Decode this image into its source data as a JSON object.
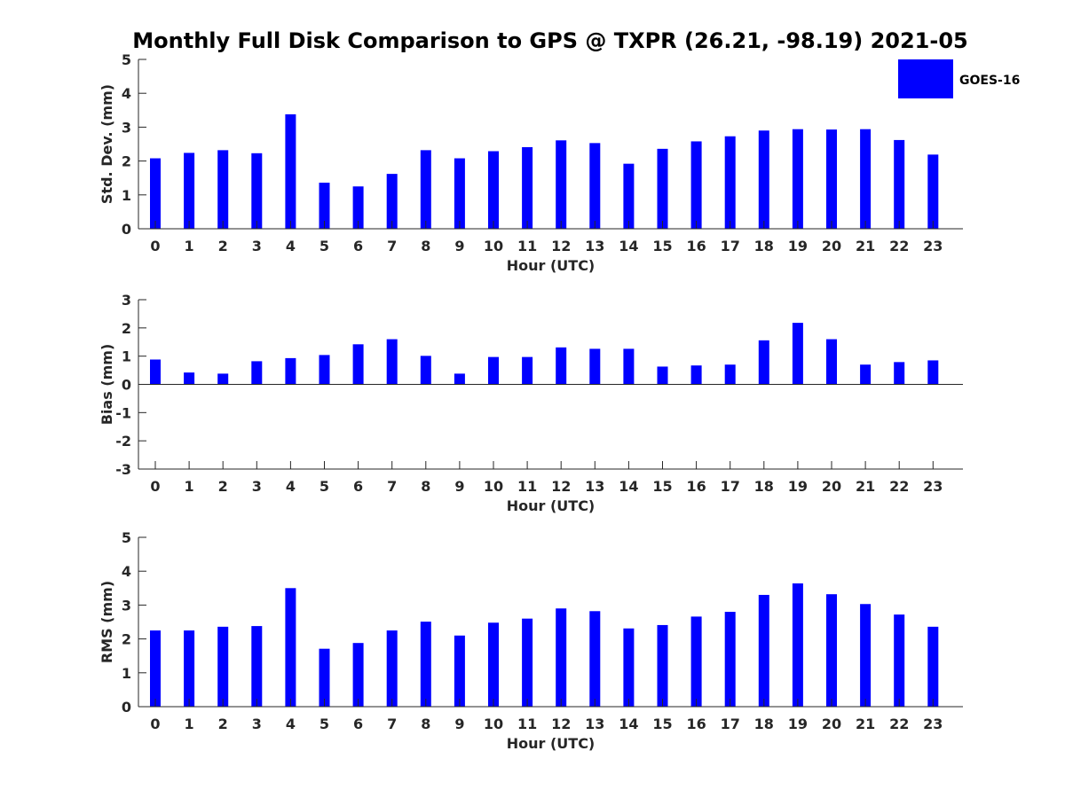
{
  "title": "Monthly Full Disk Comparison to GPS @ TXPR (26.21, -98.19) 2021-05",
  "legend": {
    "label": "GOES-16",
    "color": "#0000ff"
  },
  "chart_data": [
    {
      "type": "bar",
      "title": "Monthly Full Disk Comparison to GPS @ TXPR (26.21, -98.19) 2021-05",
      "xlabel": "Hour (UTC)",
      "ylabel": "Std. Dev. (mm)",
      "ylim": [
        0,
        5
      ],
      "yticks": [
        "0",
        "1",
        "2",
        "3",
        "4",
        "5"
      ],
      "categories": [
        "0",
        "1",
        "2",
        "3",
        "4",
        "5",
        "6",
        "7",
        "8",
        "9",
        "10",
        "11",
        "12",
        "13",
        "14",
        "15",
        "16",
        "17",
        "18",
        "19",
        "20",
        "21",
        "22",
        "23"
      ],
      "series": [
        {
          "name": "GOES-16",
          "color": "#0000ff",
          "values": [
            2.08,
            2.24,
            2.32,
            2.23,
            3.38,
            1.36,
            1.25,
            1.62,
            2.32,
            2.08,
            2.29,
            2.41,
            2.61,
            2.53,
            1.92,
            2.36,
            2.58,
            2.73,
            2.9,
            2.94,
            2.93,
            2.94,
            2.62,
            2.19
          ]
        }
      ]
    },
    {
      "type": "bar",
      "xlabel": "Hour (UTC)",
      "ylabel": "Bias (mm)",
      "ylim": [
        -3,
        3
      ],
      "yticks": [
        "-3",
        "-2",
        "-1",
        "0",
        "1",
        "2",
        "3"
      ],
      "categories": [
        "0",
        "1",
        "2",
        "3",
        "4",
        "5",
        "6",
        "7",
        "8",
        "9",
        "10",
        "11",
        "12",
        "13",
        "14",
        "15",
        "16",
        "17",
        "18",
        "19",
        "20",
        "21",
        "22",
        "23"
      ],
      "series": [
        {
          "name": "GOES-16",
          "color": "#0000ff",
          "values": [
            0.88,
            0.42,
            0.38,
            0.82,
            0.93,
            1.04,
            1.42,
            1.6,
            1.01,
            0.38,
            0.97,
            0.97,
            1.31,
            1.26,
            1.26,
            0.63,
            0.67,
            0.7,
            1.56,
            2.18,
            1.6,
            0.7,
            0.79,
            0.85
          ]
        }
      ]
    },
    {
      "type": "bar",
      "xlabel": "Hour (UTC)",
      "ylabel": "RMS (mm)",
      "ylim": [
        0,
        5
      ],
      "yticks": [
        "0",
        "1",
        "2",
        "3",
        "4",
        "5"
      ],
      "categories": [
        "0",
        "1",
        "2",
        "3",
        "4",
        "5",
        "6",
        "7",
        "8",
        "9",
        "10",
        "11",
        "12",
        "13",
        "14",
        "15",
        "16",
        "17",
        "18",
        "19",
        "20",
        "21",
        "22",
        "23"
      ],
      "series": [
        {
          "name": "GOES-16",
          "color": "#0000ff",
          "values": [
            2.25,
            2.25,
            2.36,
            2.38,
            3.5,
            1.71,
            1.88,
            2.25,
            2.51,
            2.1,
            2.48,
            2.6,
            2.9,
            2.82,
            2.31,
            2.41,
            2.66,
            2.8,
            3.3,
            3.64,
            3.32,
            3.03,
            2.72,
            2.36
          ]
        }
      ]
    }
  ]
}
